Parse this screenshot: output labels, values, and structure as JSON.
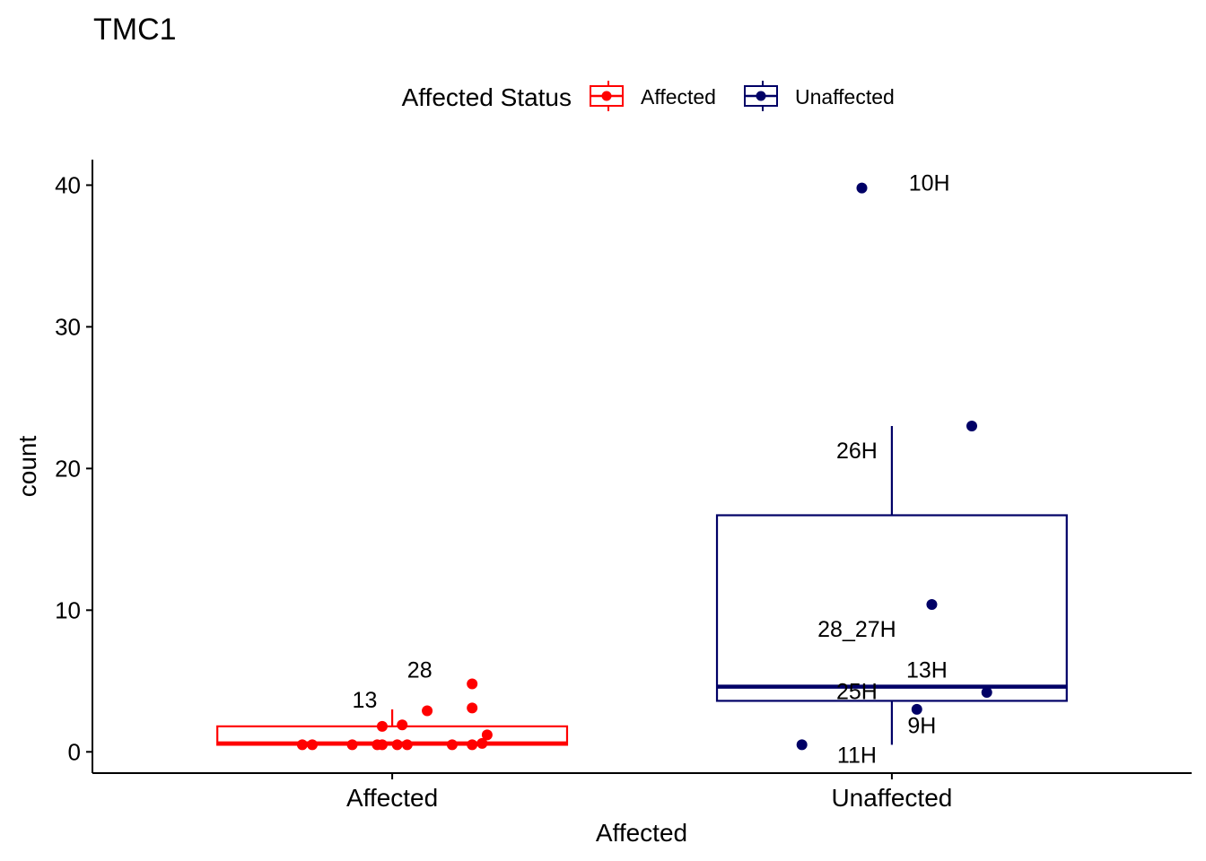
{
  "chart_data": {
    "type": "boxplot",
    "title": "TMC1",
    "xlabel": "Affected",
    "ylabel": "count",
    "ylim": [
      -1.5,
      41.8
    ],
    "yticks": [
      0,
      10,
      20,
      30,
      40
    ],
    "categories": [
      "Affected",
      "Unaffected"
    ],
    "legend": {
      "title": "Affected Status",
      "placement": "top",
      "entries": [
        {
          "label": "Affected",
          "color": "#ff0000"
        },
        {
          "label": "Unaffected",
          "color": "#000066"
        }
      ]
    },
    "groups": [
      {
        "name": "Affected",
        "color": "#ff0000",
        "box": {
          "q1": 0.5,
          "median": 0.6,
          "q3": 1.8,
          "whisker_low": 0.5,
          "whisker_high": 3.0
        },
        "points": [
          {
            "jitter": -0.18,
            "y": 0.5
          },
          {
            "jitter": -0.16,
            "y": 0.5
          },
          {
            "jitter": -0.08,
            "y": 0.5
          },
          {
            "jitter": -0.03,
            "y": 0.5
          },
          {
            "jitter": -0.02,
            "y": 1.8
          },
          {
            "jitter": -0.02,
            "y": 0.5
          },
          {
            "jitter": 0.01,
            "y": 0.5
          },
          {
            "jitter": 0.02,
            "y": 1.9
          },
          {
            "jitter": 0.03,
            "y": 0.5
          },
          {
            "jitter": 0.07,
            "y": 2.9
          },
          {
            "jitter": 0.12,
            "y": 0.5
          },
          {
            "jitter": 0.16,
            "y": 0.5
          },
          {
            "jitter": 0.16,
            "y": 3.1
          },
          {
            "jitter": 0.16,
            "y": 4.8
          },
          {
            "jitter": 0.18,
            "y": 0.6
          },
          {
            "jitter": 0.19,
            "y": 1.2
          }
        ],
        "labels": [
          {
            "text": "28",
            "jitter": 0.055,
            "y": 5.8
          },
          {
            "text": "13",
            "jitter": -0.055,
            "y": 3.7
          }
        ]
      },
      {
        "name": "Unaffected",
        "color": "#000066",
        "box": {
          "q1": 3.6,
          "median": 4.6,
          "q3": 16.7,
          "whisker_low": 0.5,
          "whisker_high": 23.0
        },
        "points": [
          {
            "jitter": -0.06,
            "y": 39.8
          },
          {
            "jitter": 0.16,
            "y": 23.0
          },
          {
            "jitter": 0.08,
            "y": 10.4
          },
          {
            "jitter": 0.19,
            "y": 4.2
          },
          {
            "jitter": 0.05,
            "y": 3.0
          },
          {
            "jitter": -0.18,
            "y": 0.5
          }
        ],
        "labels": [
          {
            "text": "10H",
            "jitter": 0.075,
            "y": 40.2
          },
          {
            "text": "26H",
            "jitter": -0.07,
            "y": 21.3
          },
          {
            "text": "28_27H",
            "jitter": -0.07,
            "y": 8.7
          },
          {
            "text": "13H",
            "jitter": 0.07,
            "y": 5.8
          },
          {
            "text": "25H",
            "jitter": -0.07,
            "y": 4.3
          },
          {
            "text": "9H",
            "jitter": 0.06,
            "y": 1.9
          },
          {
            "text": "11H",
            "jitter": -0.07,
            "y": -0.2
          }
        ]
      }
    ]
  }
}
